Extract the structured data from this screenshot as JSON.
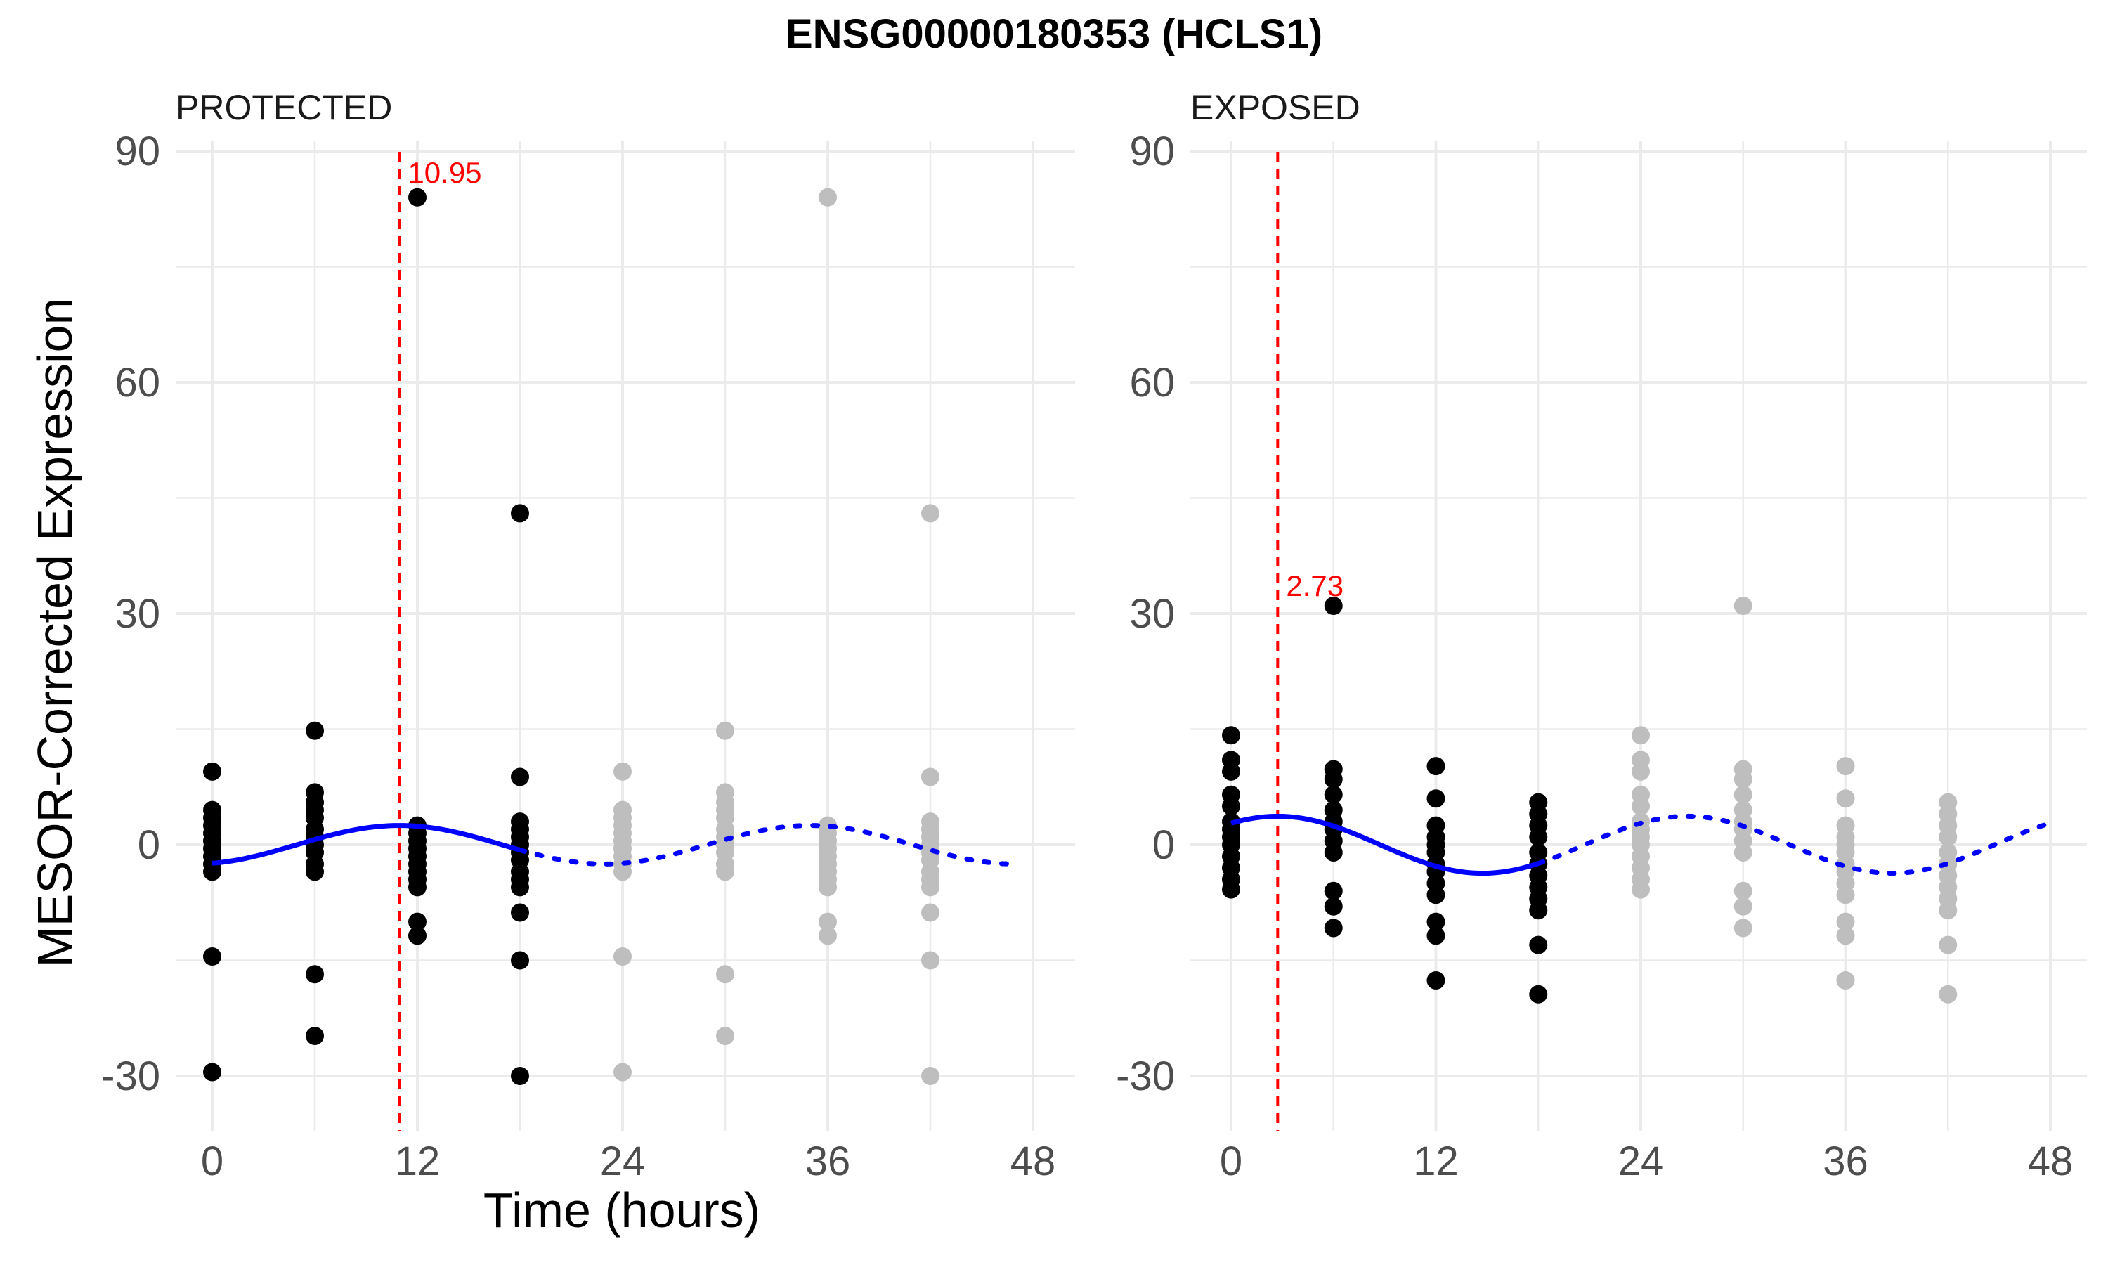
{
  "chart_data": {
    "type": "scatter",
    "title": "ENSG00000180353 (HCLS1)",
    "xlabel": "Time (hours)",
    "ylabel": "MESOR-Corrected Expression",
    "xlim": [
      -2,
      51
    ],
    "ylim": [
      -36,
      90
    ],
    "x_ticks": [
      0,
      12,
      24,
      36,
      48
    ],
    "y_ticks": [
      -30,
      0,
      30,
      60,
      90
    ],
    "x_tick_labels": [
      "0",
      "12",
      "24",
      "36",
      "48"
    ],
    "y_tick_labels": [
      "-30",
      "0",
      "30",
      "60",
      "90"
    ],
    "grid": true,
    "colors": {
      "observed_points": "#000000",
      "repeated_points": "#bebebe",
      "fit_line": "#0000ff",
      "peak_line": "#ff0000",
      "grid": "#ebebeb"
    },
    "panels": [
      {
        "label": "PROTECTED",
        "peak_time": 10.95,
        "peak_label": "10.95",
        "fit": {
          "mesor": 0.0,
          "amplitude": 2.5,
          "acrophase": 10.95,
          "period": 24
        },
        "fit_solid_range": [
          0,
          18
        ],
        "fit_dotted_range": [
          18,
          47
        ],
        "observed": [
          {
            "x": 0,
            "y": [
              9.5,
              4.5,
              3.5,
              2.5,
              1.5,
              0.5,
              -0.5,
              -1.5,
              -2.5,
              -3.5,
              -14.5,
              -29.5
            ]
          },
          {
            "x": 6,
            "y": [
              14.8,
              6.8,
              5.5,
              4.5,
              3.5,
              2.0,
              1.0,
              0.0,
              -1.0,
              -2.5,
              -3.5,
              -16.8,
              -24.8
            ]
          },
          {
            "x": 12,
            "y": [
              84.0,
              2.5,
              1.5,
              0.5,
              -0.5,
              -1.5,
              -2.5,
              -3.5,
              -4.5,
              -5.5,
              -10.0,
              -11.8
            ]
          },
          {
            "x": 18,
            "y": [
              43.0,
              8.8,
              3.0,
              2.0,
              1.0,
              0.0,
              -1.0,
              -2.0,
              -3.5,
              -4.5,
              -5.5,
              -8.8,
              -15.0,
              -30.0
            ]
          }
        ],
        "repeated_offset": 24
      },
      {
        "label": "EXPOSED",
        "peak_time": 2.73,
        "peak_label": "2.73",
        "fit": {
          "mesor": 0.0,
          "amplitude": 3.7,
          "acrophase": 2.73,
          "period": 24
        },
        "fit_solid_range": [
          0,
          18
        ],
        "fit_dotted_range": [
          18,
          48
        ],
        "observed": [
          {
            "x": 0,
            "y": [
              14.2,
              11.0,
              9.5,
              6.5,
              5.0,
              3.0,
              2.0,
              1.0,
              0.0,
              -1.5,
              -3.0,
              -4.5,
              -5.8
            ]
          },
          {
            "x": 6,
            "y": [
              31.0,
              9.8,
              8.5,
              6.5,
              4.5,
              3.0,
              2.0,
              0.5,
              -1.0,
              -6.0,
              -8.0,
              -10.8
            ]
          },
          {
            "x": 12,
            "y": [
              10.2,
              6.0,
              2.5,
              1.0,
              0.0,
              -1.0,
              -2.5,
              -3.5,
              -5.0,
              -6.5,
              -10.0,
              -11.8,
              -17.6
            ]
          },
          {
            "x": 18,
            "y": [
              5.5,
              4.0,
              2.5,
              1.0,
              -1.0,
              -2.5,
              -4.0,
              -5.5,
              -7.0,
              -8.5,
              -13.0,
              -19.4
            ]
          }
        ],
        "repeated_offset": 24
      }
    ]
  }
}
